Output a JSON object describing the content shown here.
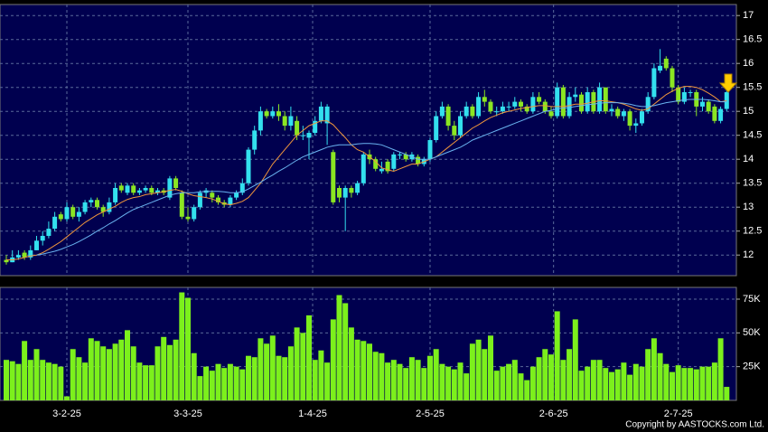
{
  "chart_data": [
    {
      "type": "candlestick",
      "up_color": "#33e0ee",
      "down_color": "#8be622",
      "grid": true,
      "xlim": [
        -1.045,
        120.6
      ],
      "ylim": [
        11.57,
        17.23
      ],
      "yticks": [
        12,
        12.5,
        13,
        13.5,
        14,
        14.5,
        15,
        15.5,
        16,
        16.5,
        17
      ],
      "xticks": [
        10,
        30,
        50.6,
        70,
        90.4,
        111
      ],
      "ohlc": [
        [
          11.9,
          12.0,
          11.8,
          11.85
        ],
        [
          11.85,
          12.1,
          11.85,
          11.95
        ],
        [
          11.95,
          12.1,
          11.9,
          12.0
        ],
        [
          12.05,
          12.1,
          11.9,
          11.95
        ],
        [
          11.95,
          12.2,
          11.9,
          12.1
        ],
        [
          12.1,
          12.4,
          12.1,
          12.3
        ],
        [
          12.3,
          12.5,
          12.2,
          12.4
        ],
        [
          12.4,
          12.7,
          12.35,
          12.55
        ],
        [
          12.55,
          12.9,
          12.5,
          12.8
        ],
        [
          12.85,
          12.9,
          12.7,
          12.75
        ],
        [
          12.75,
          13.1,
          12.7,
          13.0
        ],
        [
          13.0,
          13.05,
          12.75,
          12.8
        ],
        [
          12.8,
          13.0,
          12.7,
          12.9
        ],
        [
          12.9,
          13.15,
          12.85,
          13.1
        ],
        [
          13.1,
          13.2,
          13.0,
          13.15
        ],
        [
          13.15,
          13.2,
          12.95,
          13.0
        ],
        [
          13.0,
          13.05,
          12.8,
          12.9
        ],
        [
          12.9,
          13.2,
          12.85,
          13.1
        ],
        [
          13.1,
          13.5,
          13.05,
          13.4
        ],
        [
          13.45,
          13.5,
          13.3,
          13.35
        ],
        [
          13.3,
          13.5,
          13.25,
          13.45
        ],
        [
          13.45,
          13.5,
          13.25,
          13.3
        ],
        [
          13.3,
          13.4,
          13.25,
          13.35
        ],
        [
          13.35,
          13.45,
          13.3,
          13.4
        ],
        [
          13.4,
          13.45,
          13.25,
          13.3
        ],
        [
          13.3,
          13.4,
          13.25,
          13.35
        ],
        [
          13.35,
          13.4,
          13.25,
          13.3
        ],
        [
          13.2,
          13.65,
          13.15,
          13.6
        ],
        [
          13.6,
          13.65,
          13.35,
          13.4
        ],
        [
          13.3,
          13.35,
          12.75,
          12.8
        ],
        [
          12.8,
          13.0,
          12.7,
          12.75
        ],
        [
          12.75,
          13.05,
          12.7,
          13.0
        ],
        [
          13.0,
          13.35,
          12.95,
          13.3
        ],
        [
          13.3,
          13.4,
          13.2,
          13.35
        ],
        [
          13.3,
          13.35,
          13.1,
          13.2
        ],
        [
          13.2,
          13.25,
          13.05,
          13.1
        ],
        [
          13.1,
          13.15,
          13.0,
          13.05
        ],
        [
          13.05,
          13.25,
          13.0,
          13.2
        ],
        [
          13.2,
          13.35,
          13.15,
          13.3
        ],
        [
          13.3,
          13.6,
          13.25,
          13.5
        ],
        [
          13.5,
          14.25,
          13.45,
          14.2
        ],
        [
          14.2,
          14.7,
          14.1,
          14.6
        ],
        [
          14.6,
          15.1,
          14.5,
          15.0
        ],
        [
          15.0,
          15.05,
          14.85,
          14.9
        ],
        [
          14.9,
          15.1,
          14.85,
          15.0
        ],
        [
          15.0,
          15.15,
          14.8,
          14.9
        ],
        [
          14.9,
          15.0,
          14.6,
          14.7
        ],
        [
          14.7,
          15.1,
          14.6,
          14.9
        ],
        [
          14.8,
          14.9,
          14.4,
          14.5
        ],
        [
          14.5,
          14.7,
          14.4,
          14.5
        ],
        [
          14.45,
          14.6,
          14.0,
          14.55
        ],
        [
          14.55,
          14.9,
          14.5,
          14.8
        ],
        [
          14.8,
          15.2,
          14.75,
          15.1
        ],
        [
          14.75,
          15.15,
          14.3,
          15.1
        ],
        [
          14.15,
          14.2,
          13.05,
          13.1
        ],
        [
          13.4,
          13.45,
          13.1,
          13.2
        ],
        [
          13.2,
          13.45,
          12.5,
          13.4
        ],
        [
          13.4,
          13.45,
          13.2,
          13.3
        ],
        [
          13.3,
          13.55,
          13.25,
          13.5
        ],
        [
          13.5,
          14.15,
          13.45,
          14.1
        ],
        [
          14.1,
          14.2,
          13.9,
          14.0
        ],
        [
          14.0,
          14.05,
          13.75,
          13.8
        ],
        [
          13.75,
          13.95,
          13.7,
          13.8
        ],
        [
          13.95,
          14.0,
          13.7,
          13.75
        ],
        [
          13.8,
          14.15,
          13.75,
          14.1
        ],
        [
          14.1,
          14.15,
          14.0,
          14.1
        ],
        [
          14.1,
          14.15,
          13.95,
          14.0
        ],
        [
          14.0,
          14.15,
          13.95,
          14.1
        ],
        [
          14.05,
          14.1,
          13.85,
          13.9
        ],
        [
          13.9,
          14.05,
          13.85,
          14.0
        ],
        [
          14.0,
          14.45,
          13.95,
          14.4
        ],
        [
          14.4,
          15.0,
          14.35,
          14.9
        ],
        [
          14.9,
          15.2,
          14.85,
          15.1
        ],
        [
          15.1,
          15.15,
          14.6,
          14.7
        ],
        [
          14.7,
          14.8,
          14.4,
          14.5
        ],
        [
          14.5,
          15.0,
          14.45,
          14.9
        ],
        [
          14.9,
          15.2,
          14.85,
          15.1
        ],
        [
          15.1,
          15.15,
          14.85,
          14.9
        ],
        [
          14.9,
          15.4,
          14.85,
          15.3
        ],
        [
          15.3,
          15.45,
          15.1,
          15.2
        ],
        [
          15.2,
          15.25,
          14.95,
          15.0
        ],
        [
          15.0,
          15.1,
          14.9,
          15.0
        ],
        [
          15.0,
          15.2,
          14.95,
          15.1
        ],
        [
          15.1,
          15.2,
          15.0,
          15.1
        ],
        [
          15.1,
          15.3,
          15.05,
          15.2
        ],
        [
          15.2,
          15.25,
          15.0,
          15.1
        ],
        [
          15.1,
          15.15,
          14.95,
          15.0
        ],
        [
          15.0,
          15.4,
          14.95,
          15.3
        ],
        [
          15.3,
          15.4,
          15.15,
          15.2
        ],
        [
          15.2,
          15.25,
          14.95,
          15.0
        ],
        [
          15.0,
          15.1,
          14.85,
          14.9
        ],
        [
          14.9,
          15.6,
          14.85,
          15.5
        ],
        [
          15.5,
          15.55,
          14.85,
          14.9
        ],
        [
          14.9,
          15.4,
          14.85,
          15.3
        ],
        [
          15.3,
          15.5,
          15.2,
          15.35
        ],
        [
          15.35,
          15.4,
          14.95,
          15.0
        ],
        [
          15.0,
          15.5,
          14.95,
          15.4
        ],
        [
          15.4,
          15.45,
          14.95,
          15.0
        ],
        [
          15.0,
          15.6,
          14.95,
          15.5
        ],
        [
          15.5,
          15.5,
          14.95,
          15.0
        ],
        [
          15.0,
          15.15,
          14.9,
          15.05
        ],
        [
          15.05,
          15.1,
          14.85,
          14.9
        ],
        [
          14.9,
          15.05,
          14.8,
          15.0
        ],
        [
          15.0,
          15.05,
          14.6,
          14.7
        ],
        [
          14.7,
          14.85,
          14.55,
          14.75
        ],
        [
          14.75,
          15.05,
          14.7,
          15.0
        ],
        [
          15.0,
          15.4,
          14.95,
          15.3
        ],
        [
          15.3,
          16.0,
          15.25,
          15.9
        ],
        [
          15.85,
          16.3,
          15.8,
          15.95
        ],
        [
          16.1,
          16.15,
          15.85,
          15.9
        ],
        [
          15.9,
          15.95,
          15.4,
          15.5
        ],
        [
          15.5,
          15.55,
          15.15,
          15.2
        ],
        [
          15.2,
          15.5,
          15.15,
          15.4
        ],
        [
          15.4,
          15.45,
          15.3,
          15.4
        ],
        [
          15.4,
          15.45,
          14.9,
          15.1
        ],
        [
          15.1,
          15.3,
          15.0,
          15.2
        ],
        [
          15.2,
          15.25,
          14.95,
          15.0
        ],
        [
          15.1,
          15.15,
          14.75,
          14.8
        ],
        [
          14.8,
          15.1,
          14.75,
          15.05
        ],
        [
          15.05,
          15.5,
          15.0,
          15.4
        ]
      ],
      "lines": [
        {
          "color": "#f0963c",
          "values": [
            11.9,
            11.9,
            11.92,
            11.95,
            11.98,
            12.0,
            12.05,
            12.12,
            12.2,
            12.28,
            12.38,
            12.48,
            12.58,
            12.68,
            12.76,
            12.84,
            12.9,
            12.96,
            13.02,
            13.1,
            13.16,
            13.2,
            13.22,
            13.26,
            13.28,
            13.3,
            13.32,
            13.35,
            13.37,
            13.33,
            13.28,
            13.24,
            13.22,
            13.2,
            13.17,
            13.12,
            13.07,
            13.05,
            13.08,
            13.12,
            13.2,
            13.35,
            13.5,
            13.7,
            13.9,
            14.05,
            14.2,
            14.35,
            14.5,
            14.6,
            14.7,
            14.75,
            14.8,
            14.8,
            14.72,
            14.58,
            14.45,
            14.3,
            14.2,
            14.15,
            14.05,
            13.95,
            13.82,
            13.78,
            13.75,
            13.8,
            13.85,
            13.9,
            13.9,
            13.95,
            14.0,
            14.05,
            14.15,
            14.25,
            14.35,
            14.45,
            14.55,
            14.65,
            14.72,
            14.8,
            14.87,
            14.92,
            14.97,
            15.0,
            15.03,
            15.06,
            15.08,
            15.1,
            15.12,
            15.12,
            15.1,
            15.1,
            15.1,
            15.12,
            15.15,
            15.15,
            15.17,
            15.2,
            15.22,
            15.22,
            15.2,
            15.18,
            15.15,
            15.1,
            15.05,
            15.02,
            15.05,
            15.15,
            15.25,
            15.35,
            15.42,
            15.48,
            15.52,
            15.52,
            15.5,
            15.45,
            15.38,
            15.3,
            15.2,
            15.22
          ]
        },
        {
          "color": "#6ab4f0",
          "values": [
            null,
            null,
            null,
            null,
            null,
            12.0,
            12.02,
            12.05,
            12.08,
            12.12,
            12.17,
            12.22,
            12.28,
            12.35,
            12.42,
            12.5,
            12.57,
            12.65,
            12.72,
            12.8,
            12.88,
            12.95,
            13.0,
            13.05,
            13.1,
            13.15,
            13.2,
            13.25,
            13.28,
            13.3,
            13.3,
            13.3,
            13.32,
            13.33,
            13.33,
            13.33,
            13.32,
            13.3,
            13.3,
            13.32,
            13.38,
            13.45,
            13.52,
            13.6,
            13.67,
            13.75,
            13.82,
            13.9,
            13.98,
            14.05,
            14.1,
            14.15,
            14.2,
            14.25,
            14.28,
            14.3,
            14.3,
            14.3,
            14.32,
            14.33,
            14.33,
            14.32,
            14.3,
            14.25,
            14.2,
            14.15,
            14.1,
            14.05,
            14.0,
            14.0,
            14.0,
            14.05,
            14.1,
            14.15,
            14.2,
            14.25,
            14.32,
            14.4,
            14.45,
            14.5,
            14.55,
            14.6,
            14.65,
            14.7,
            14.75,
            14.8,
            14.85,
            14.9,
            14.95,
            15.0,
            15.02,
            15.05,
            15.07,
            15.08,
            15.1,
            15.12,
            15.14,
            15.15,
            15.17,
            15.18,
            15.18,
            15.18,
            15.17,
            15.15,
            15.12,
            15.1,
            15.1,
            15.12,
            15.15,
            15.18,
            15.2,
            15.22,
            15.24,
            15.25,
            15.25,
            15.25,
            15.24,
            15.22,
            15.2,
            15.2
          ]
        }
      ]
    },
    {
      "type": "bar",
      "color": "#7cf01c",
      "grid": true,
      "xlim": [
        -1.045,
        120.6
      ],
      "ylim": [
        0,
        83700
      ],
      "yticks": [
        {
          "value": 25000,
          "label": "25K"
        },
        {
          "value": 50000,
          "label": "50K"
        },
        {
          "value": 75000,
          "label": "75K"
        }
      ],
      "xticks": [
        {
          "value": 10,
          "label": "3-2-25"
        },
        {
          "value": 30,
          "label": "3-3-25"
        },
        {
          "value": 50.6,
          "label": "1-4-25"
        },
        {
          "value": 70,
          "label": "2-5-25"
        },
        {
          "value": 90.4,
          "label": "2-6-25"
        },
        {
          "value": 111,
          "label": "2-7-25"
        }
      ],
      "values": [
        30000,
        29000,
        27000,
        44000,
        30000,
        38000,
        30000,
        28000,
        27000,
        25000,
        3000,
        38000,
        32000,
        28000,
        46000,
        44000,
        40000,
        38000,
        42000,
        45000,
        52000,
        40000,
        28000,
        26000,
        26000,
        40000,
        47000,
        41000,
        45000,
        80000,
        76000,
        35000,
        18000,
        25000,
        22000,
        27000,
        24000,
        27000,
        25000,
        23000,
        33000,
        32000,
        46000,
        42000,
        48000,
        33000,
        32000,
        40000,
        54000,
        50000,
        63000,
        30000,
        37000,
        28000,
        60000,
        78000,
        72000,
        54000,
        45000,
        44000,
        42000,
        36000,
        35000,
        28000,
        30000,
        27000,
        24000,
        32000,
        30000,
        24000,
        33000,
        38000,
        27000,
        25000,
        23000,
        28000,
        20000,
        42000,
        45000,
        38000,
        48000,
        22000,
        25000,
        27000,
        30000,
        20000,
        15000,
        25000,
        32000,
        38000,
        34000,
        66000,
        30000,
        38000,
        60000,
        22000,
        25000,
        30000,
        30000,
        24000,
        21000,
        23000,
        28000,
        19000,
        27000,
        25000,
        38000,
        46000,
        35000,
        27000,
        21000,
        26000,
        24000,
        24000,
        23000,
        25000,
        25000,
        28000,
        46000,
        10000
      ]
    }
  ],
  "copyright": "Copyright by AASTOCKS.com Ltd."
}
